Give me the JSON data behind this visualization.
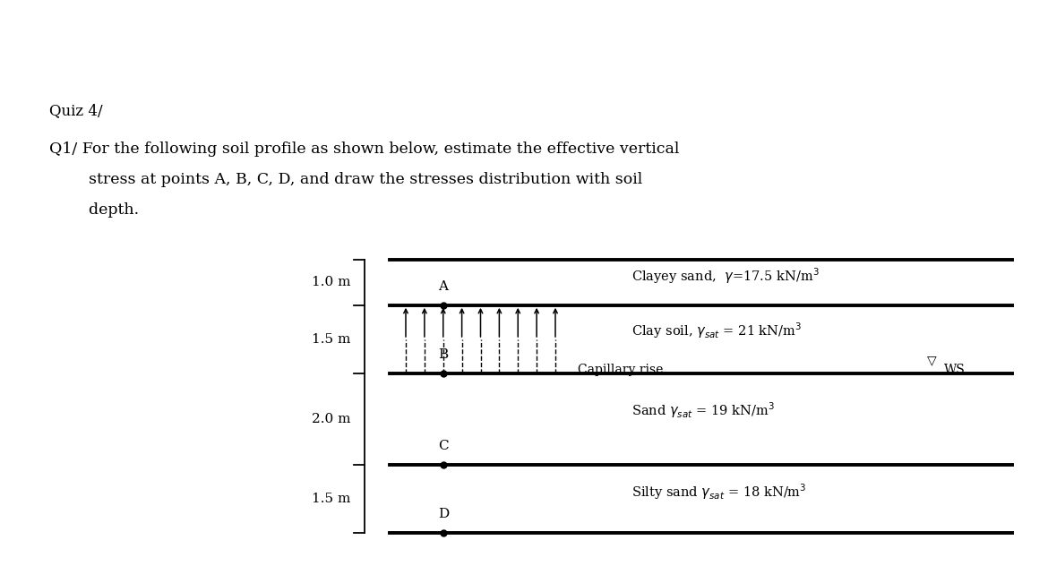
{
  "title": "Quiz 4/",
  "q_line1": "Q1/ For the following soil profile as shown below, estimate the effective vertical",
  "q_line2": "        stress at points A, B, C, D, and draw the stresses distribution with soil",
  "q_line3": "        depth.",
  "layer_labels": [
    "1.0 m",
    "1.5 m",
    "2.0 m",
    "1.5 m"
  ],
  "layer_depths": [
    0,
    1.0,
    2.5,
    4.5,
    6.0
  ],
  "soil_texts": [
    "Clayey sand,  γ =17.5 kN/m³",
    "Clay soil, γsat = 21 kN/m³",
    "Sand γsat = 19 kN/m³",
    "Silty sand γsat = 18 kN/m³"
  ],
  "soil_depth_mids": [
    0.35,
    1.55,
    3.3,
    5.1
  ],
  "point_names": [
    "A",
    "B",
    "C",
    "D"
  ],
  "point_depths": [
    1.0,
    2.5,
    4.5,
    6.0
  ],
  "capillary_label": "Capillary rise",
  "ws_label": "WS",
  "bg_color": "#ffffff"
}
